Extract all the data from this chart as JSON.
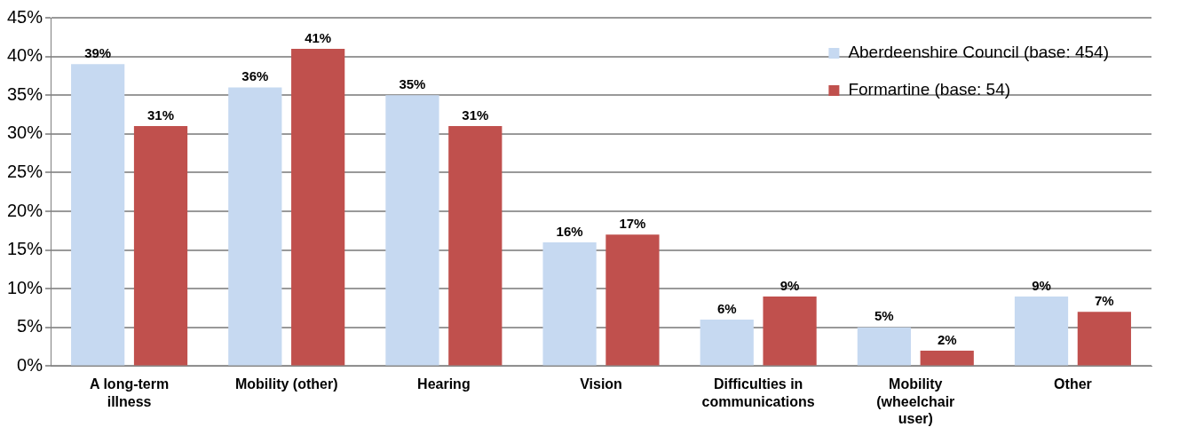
{
  "chart_data": {
    "type": "bar",
    "categories": [
      "A long-term illness",
      "Mobility (other)",
      "Hearing",
      "Vision",
      "Difficulties in communications",
      "Mobility (wheelchair user)",
      "Other"
    ],
    "series": [
      {
        "name": "Aberdeenshire Council (base: 454)",
        "color": "#c6d9f1",
        "values": [
          39,
          36,
          35,
          16,
          6,
          5,
          9
        ],
        "value_labels": [
          "39%",
          "36%",
          "35%",
          "16%",
          "6%",
          "5%",
          "9%"
        ]
      },
      {
        "name": "Formartine (base: 54)",
        "color": "#c0504d",
        "values": [
          31,
          41,
          31,
          17,
          9,
          2,
          7
        ],
        "value_labels": [
          "31%",
          "41%",
          "31%",
          "17%",
          "9%",
          "2%",
          "7%"
        ]
      }
    ],
    "ylim": [
      0,
      45
    ],
    "yticks": [
      {
        "value": 0,
        "label": "0%"
      },
      {
        "value": 5,
        "label": "5%"
      },
      {
        "value": 10,
        "label": "10%"
      },
      {
        "value": 15,
        "label": "15%"
      },
      {
        "value": 20,
        "label": "20%"
      },
      {
        "value": 25,
        "label": "25%"
      },
      {
        "value": 30,
        "label": "30%"
      },
      {
        "value": 35,
        "label": "35%"
      },
      {
        "value": 40,
        "label": "40%"
      },
      {
        "value": 45,
        "label": "45%"
      }
    ],
    "grid": "y",
    "legend": "top right"
  }
}
